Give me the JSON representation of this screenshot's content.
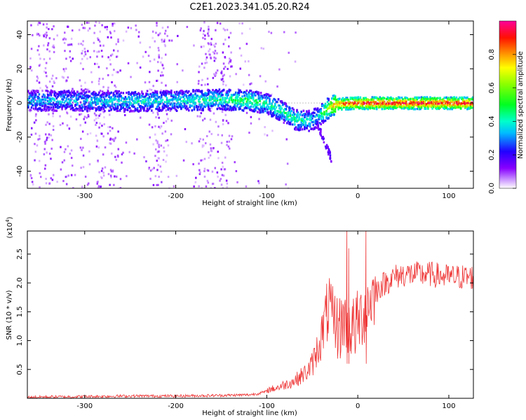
{
  "chart_data": [
    {
      "type": "heatmap",
      "title": "C2E1.2023.341.05.20.R24",
      "xlabel": "Height of straight line (km)",
      "ylabel": "Frequency (Hz)",
      "xlim": [
        -363,
        127
      ],
      "ylim": [
        -50,
        48
      ],
      "xticks": [
        "-300",
        "-200",
        "-100",
        "0",
        "100"
      ],
      "yticks": [
        "40",
        "20",
        "0",
        "-20",
        "-40"
      ],
      "colorbar": {
        "label": "Normalized spectral amplitude",
        "range": [
          0.0,
          1.0
        ],
        "ticks": [
          "0.0",
          "0.2",
          "0.4",
          "0.6",
          "0.8"
        ],
        "colormap": "rainbow (white-purple-blue-cyan-green-yellow-orange-red-magenta)"
      },
      "ridge": {
        "description": "bright band near 0 Hz, slight positive offset at low heights, dipping to about -10 Hz near -70 to -40 km, narrow red line near 0 Hz above -20 km",
        "x": [
          -360,
          -300,
          -250,
          -200,
          -150,
          -120,
          -100,
          -85,
          -70,
          -55,
          -45,
          -35,
          -25,
          0,
          50,
          100,
          125
        ],
        "freq": [
          2,
          2,
          1.5,
          2,
          2.5,
          2,
          0,
          -4,
          -9,
          -10,
          -8,
          -3,
          0,
          0.5,
          0.5,
          0.5,
          0.5
        ],
        "amplitude": [
          0.35,
          0.35,
          0.4,
          0.4,
          0.45,
          0.5,
          0.45,
          0.45,
          0.45,
          0.4,
          0.35,
          0.6,
          0.85,
          0.95,
          0.95,
          0.95,
          0.95
        ]
      },
      "grid": false,
      "grid_lines_y": [
        0
      ]
    },
    {
      "type": "line",
      "title": "",
      "xlabel": "Height of straight line (km)",
      "ylabel": "SNR (10 * v/v)",
      "y_multiplier_label": "(x10",
      "y_multiplier_exp": "4",
      "xlim": [
        -363,
        127
      ],
      "ylim": [
        0,
        2.9
      ],
      "xticks": [
        "-300",
        "-200",
        "-100",
        "0",
        "100"
      ],
      "yticks": [
        "0.5",
        "1.0",
        "1.5",
        "2.0",
        "2.5"
      ],
      "series": [
        {
          "color": "#ee3333",
          "x": [
            -363,
            -300,
            -250,
            -200,
            -150,
            -120,
            -110,
            -100,
            -90,
            -80,
            -70,
            -60,
            -55,
            -50,
            -45,
            -40,
            -35,
            -30,
            -25,
            -20,
            -15,
            -10,
            -5,
            0,
            5,
            10,
            15,
            20,
            25,
            30,
            40,
            50,
            60,
            80,
            100,
            127
          ],
          "y": [
            0.02,
            0.03,
            0.04,
            0.04,
            0.05,
            0.06,
            0.08,
            0.12,
            0.15,
            0.2,
            0.25,
            0.35,
            0.4,
            0.5,
            0.7,
            0.9,
            1.2,
            1.4,
            1.3,
            1.2,
            1.4,
            1.3,
            1.2,
            1.3,
            1.45,
            1.6,
            1.75,
            1.85,
            1.95,
            2.0,
            2.1,
            2.15,
            2.15,
            2.15,
            2.1,
            2.1
          ]
        }
      ],
      "spikes": [
        {
          "x": -12,
          "y": 2.9
        },
        {
          "x": -10,
          "y": 2.6
        },
        {
          "x": 9,
          "y": 2.9
        }
      ]
    }
  ]
}
